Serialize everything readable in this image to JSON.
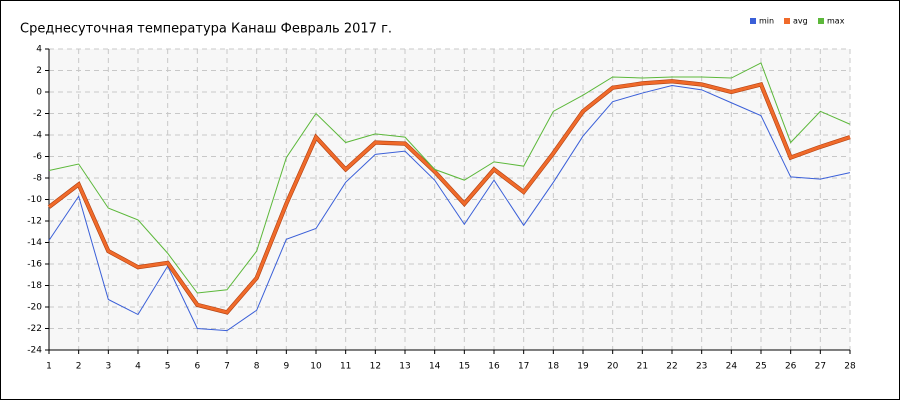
{
  "chart_data": {
    "type": "line",
    "title": "Среднесуточная температура Канаш  Февраль 2017 г.",
    "x": [
      1,
      2,
      3,
      4,
      5,
      6,
      7,
      8,
      9,
      10,
      11,
      12,
      13,
      14,
      15,
      16,
      17,
      18,
      19,
      20,
      21,
      22,
      23,
      24,
      25,
      26,
      27,
      28
    ],
    "xlim": [
      1,
      28
    ],
    "xticks": [
      1,
      2,
      3,
      4,
      5,
      6,
      7,
      8,
      9,
      10,
      11,
      12,
      13,
      14,
      15,
      16,
      17,
      18,
      19,
      20,
      21,
      22,
      23,
      24,
      25,
      26,
      27,
      28
    ],
    "ylim": [
      -24,
      4
    ],
    "yticks": [
      -24,
      -22,
      -20,
      -18,
      -16,
      -14,
      -12,
      -10,
      -8,
      -6,
      -4,
      -2,
      0,
      2,
      4
    ],
    "grid": true,
    "legend": "top-right",
    "series": [
      {
        "name": "min",
        "color": "#3a5fd8",
        "values": [
          -13.8,
          -9.7,
          -19.3,
          -20.7,
          -16.2,
          -22.0,
          -22.2,
          -20.3,
          -13.7,
          -12.7,
          -8.4,
          -5.8,
          -5.5,
          -8.2,
          -12.3,
          -8.2,
          -12.4,
          -8.4,
          -4.1,
          -0.9,
          -0.1,
          0.6,
          0.2,
          -1.0,
          -2.2,
          -7.9,
          -8.1,
          -7.5
        ]
      },
      {
        "name": "avg",
        "color": "#f06a2a",
        "values": [
          -10.7,
          -8.6,
          -14.8,
          -16.3,
          -15.9,
          -19.8,
          -20.5,
          -17.3,
          -10.4,
          -4.2,
          -7.2,
          -4.7,
          -4.8,
          -7.4,
          -10.4,
          -7.2,
          -9.3,
          -5.7,
          -1.8,
          0.4,
          0.8,
          1.0,
          0.7,
          0.0,
          0.7,
          -6.1,
          -5.1,
          -4.2
        ]
      },
      {
        "name": "max",
        "color": "#5cb83a",
        "values": [
          -7.3,
          -6.7,
          -10.8,
          -11.9,
          -15.0,
          -18.7,
          -18.4,
          -14.8,
          -6.1,
          -2.0,
          -4.7,
          -3.9,
          -4.2,
          -7.2,
          -8.2,
          -6.5,
          -6.9,
          -1.8,
          -0.3,
          1.4,
          1.3,
          1.4,
          1.4,
          1.3,
          2.7,
          -4.7,
          -1.8,
          -3.0
        ]
      }
    ]
  }
}
